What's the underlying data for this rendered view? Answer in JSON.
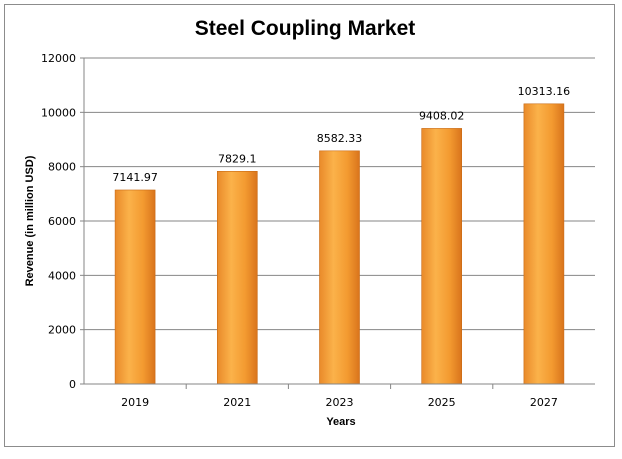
{
  "chart_data": {
    "type": "bar",
    "title": "Steel Coupling Market",
    "xlabel": "Years",
    "ylabel": "Revenue (in million USD)",
    "categories": [
      "2019",
      "2021",
      "2023",
      "2025",
      "2027"
    ],
    "values": [
      7141.97,
      7829.1,
      8582.33,
      9408.02,
      10313.16
    ],
    "value_labels": [
      "7141.97",
      "7829.1",
      "8582.33",
      "9408.02",
      "10313.16"
    ],
    "ylim": [
      0,
      12000
    ],
    "yticks": [
      "0",
      "2000",
      "4000",
      "6000",
      "8000",
      "10000",
      "12000"
    ],
    "grid": true,
    "legend": "none",
    "colors": {
      "bar_light": "#fbb24a",
      "bar_mid": "#f5952b",
      "bar_dark": "#e07a1c",
      "grid": "#868686"
    }
  }
}
